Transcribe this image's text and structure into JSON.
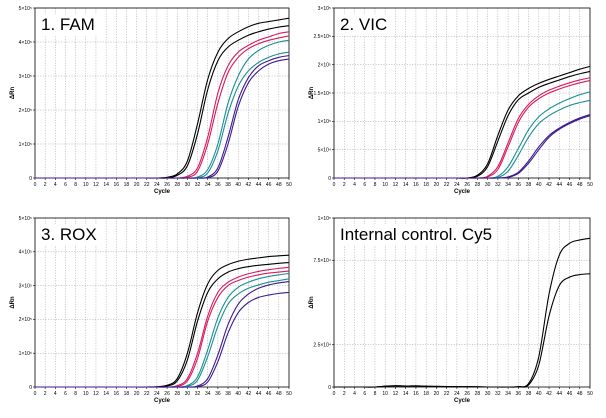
{
  "chart_data": [
    {
      "type": "line",
      "title": "1. FAM",
      "xlabel": "Cycle",
      "ylabel": "ΔRn",
      "x": [
        0,
        2,
        4,
        6,
        8,
        10,
        12,
        14,
        16,
        18,
        20,
        22,
        24,
        26,
        28,
        30,
        32,
        34,
        36,
        38,
        40,
        42,
        44,
        46,
        48,
        50
      ],
      "x_ticks": [
        "0",
        "2",
        "4",
        "6",
        "8",
        "10",
        "12",
        "14",
        "16",
        "18",
        "20",
        "22",
        "24",
        "26",
        "28",
        "30",
        "32",
        "34",
        "36",
        "38",
        "40",
        "42",
        "44",
        "46",
        "48",
        "50"
      ],
      "xlim": [
        0,
        50
      ],
      "ylim": [
        0,
        5
      ],
      "y_ticks": [
        0,
        1,
        2,
        3,
        4,
        5
      ],
      "y_tick_labels": [
        "0",
        "1×10⁵",
        "2×10⁵",
        "3×10⁵",
        "4×10⁵",
        "5×10⁵"
      ],
      "grid": true,
      "series": [
        {
          "color": "#000000",
          "values": [
            0,
            0,
            0,
            0,
            0,
            0,
            0,
            0,
            0,
            0,
            0,
            0,
            0,
            0.02,
            0.12,
            0.5,
            1.6,
            2.9,
            3.7,
            4.1,
            4.3,
            4.45,
            4.55,
            4.6,
            4.65,
            4.7
          ]
        },
        {
          "color": "#000000",
          "values": [
            0,
            0,
            0,
            0,
            0,
            0,
            0,
            0,
            0,
            0,
            0,
            0,
            0,
            0,
            0.08,
            0.36,
            1.3,
            2.6,
            3.45,
            3.85,
            4.05,
            4.2,
            4.3,
            4.38,
            4.44,
            4.48
          ]
        },
        {
          "color": "#d81b60",
          "values": [
            0,
            0,
            0,
            0,
            0,
            0,
            0,
            0,
            0,
            0,
            0,
            0,
            0,
            0,
            0,
            0.05,
            0.3,
            1.2,
            2.5,
            3.3,
            3.7,
            3.9,
            4.05,
            4.15,
            4.25,
            4.3
          ]
        },
        {
          "color": "#d81b60",
          "values": [
            0,
            0,
            0,
            0,
            0,
            0,
            0,
            0,
            0,
            0,
            0,
            0,
            0,
            0,
            0,
            0.02,
            0.2,
            1.0,
            2.2,
            3.1,
            3.55,
            3.8,
            3.95,
            4.05,
            4.12,
            4.18
          ]
        },
        {
          "color": "#1a8f94",
          "values": [
            0,
            0,
            0,
            0,
            0,
            0,
            0,
            0,
            0,
            0,
            0,
            0,
            0,
            0,
            0,
            0,
            0.03,
            0.25,
            1.0,
            2.2,
            3.0,
            3.5,
            3.75,
            3.9,
            4.0,
            4.05
          ]
        },
        {
          "color": "#1a8f94",
          "values": [
            0,
            0,
            0,
            0,
            0,
            0,
            0,
            0,
            0,
            0,
            0,
            0,
            0,
            0,
            0,
            0,
            0.01,
            0.15,
            0.8,
            1.9,
            2.7,
            3.15,
            3.4,
            3.55,
            3.65,
            3.7
          ]
        },
        {
          "color": "#3d1a8f",
          "values": [
            0,
            0,
            0,
            0,
            0,
            0,
            0,
            0,
            0,
            0,
            0,
            0,
            0,
            0,
            0,
            0,
            0,
            0.03,
            0.3,
            1.2,
            2.3,
            2.95,
            3.3,
            3.45,
            3.55,
            3.6
          ]
        },
        {
          "color": "#3d1a8f",
          "values": [
            0,
            0,
            0,
            0,
            0,
            0,
            0,
            0,
            0,
            0,
            0,
            0,
            0,
            0,
            0,
            0,
            0,
            0.01,
            0.2,
            1.0,
            2.1,
            2.8,
            3.15,
            3.35,
            3.45,
            3.5
          ]
        }
      ]
    },
    {
      "type": "line",
      "title": "2. VIC",
      "xlabel": "Cycle",
      "ylabel": "ΔRn",
      "x": [
        0,
        2,
        4,
        6,
        8,
        10,
        12,
        14,
        16,
        18,
        20,
        22,
        24,
        26,
        28,
        30,
        32,
        34,
        36,
        38,
        40,
        42,
        44,
        46,
        48,
        50
      ],
      "x_ticks": [
        "0",
        "2",
        "4",
        "6",
        "8",
        "10",
        "12",
        "14",
        "16",
        "18",
        "20",
        "22",
        "24",
        "26",
        "28",
        "30",
        "32",
        "34",
        "36",
        "38",
        "40",
        "42",
        "44",
        "46",
        "48",
        "50"
      ],
      "xlim": [
        0,
        50
      ],
      "ylim": [
        0,
        3
      ],
      "y_ticks": [
        0,
        0.5,
        1,
        1.5,
        2,
        2.5,
        3
      ],
      "y_tick_labels": [
        "0",
        "5×10⁴",
        "1×10⁵",
        "1.5×10⁵",
        "2×10⁵",
        "2.5×10⁵",
        "3×10⁵"
      ],
      "grid": true,
      "series": [
        {
          "color": "#000000",
          "values": [
            0,
            0,
            0,
            0,
            0,
            0,
            0,
            0,
            0,
            0,
            0,
            0,
            0,
            0,
            0.05,
            0.25,
            0.75,
            1.2,
            1.45,
            1.58,
            1.67,
            1.74,
            1.8,
            1.86,
            1.92,
            1.97
          ]
        },
        {
          "color": "#000000",
          "values": [
            0,
            0,
            0,
            0,
            0,
            0,
            0,
            0,
            0,
            0,
            0,
            0,
            0,
            0,
            0.03,
            0.2,
            0.65,
            1.1,
            1.38,
            1.5,
            1.6,
            1.67,
            1.73,
            1.79,
            1.84,
            1.88
          ]
        },
        {
          "color": "#d81b60",
          "values": [
            0,
            0,
            0,
            0,
            0,
            0,
            0,
            0,
            0,
            0,
            0,
            0,
            0,
            0,
            0,
            0.03,
            0.2,
            0.62,
            1.05,
            1.3,
            1.45,
            1.55,
            1.62,
            1.68,
            1.73,
            1.77
          ]
        },
        {
          "color": "#d81b60",
          "values": [
            0,
            0,
            0,
            0,
            0,
            0,
            0,
            0,
            0,
            0,
            0,
            0,
            0,
            0,
            0,
            0.02,
            0.15,
            0.55,
            0.98,
            1.25,
            1.4,
            1.5,
            1.57,
            1.63,
            1.68,
            1.72
          ]
        },
        {
          "color": "#1a8f94",
          "values": [
            0,
            0,
            0,
            0,
            0,
            0,
            0,
            0,
            0,
            0,
            0,
            0,
            0,
            0,
            0,
            0,
            0.03,
            0.2,
            0.52,
            0.85,
            1.08,
            1.22,
            1.32,
            1.4,
            1.47,
            1.52
          ]
        },
        {
          "color": "#1a8f94",
          "values": [
            0,
            0,
            0,
            0,
            0,
            0,
            0,
            0,
            0,
            0,
            0,
            0,
            0,
            0,
            0,
            0,
            0.01,
            0.12,
            0.4,
            0.72,
            0.96,
            1.1,
            1.2,
            1.28,
            1.33,
            1.37
          ]
        },
        {
          "color": "#3d1a8f",
          "values": [
            0,
            0,
            0,
            0,
            0,
            0,
            0,
            0,
            0,
            0,
            0,
            0,
            0,
            0,
            0,
            0,
            0,
            0.02,
            0.1,
            0.3,
            0.55,
            0.75,
            0.88,
            0.98,
            1.06,
            1.12
          ]
        },
        {
          "color": "#3d1a8f",
          "values": [
            0,
            0,
            0,
            0,
            0,
            0,
            0,
            0,
            0,
            0,
            0,
            0,
            0,
            0,
            0,
            0,
            0,
            0.01,
            0.08,
            0.26,
            0.5,
            0.72,
            0.86,
            0.96,
            1.04,
            1.1
          ]
        }
      ]
    },
    {
      "type": "line",
      "title": "3. ROX",
      "xlabel": "Cycle",
      "ylabel": "ΔRn",
      "x": [
        0,
        2,
        4,
        6,
        8,
        10,
        12,
        14,
        16,
        18,
        20,
        22,
        24,
        26,
        28,
        30,
        32,
        34,
        36,
        38,
        40,
        42,
        44,
        46,
        48,
        50
      ],
      "x_ticks": [
        "0",
        "2",
        "4",
        "6",
        "8",
        "10",
        "12",
        "14",
        "16",
        "18",
        "20",
        "22",
        "24",
        "26",
        "28",
        "30",
        "32",
        "34",
        "36",
        "38",
        "40",
        "42",
        "44",
        "46",
        "48",
        "50"
      ],
      "xlim": [
        0,
        50
      ],
      "ylim": [
        0,
        5
      ],
      "y_ticks": [
        0,
        1,
        2,
        3,
        4,
        5
      ],
      "y_tick_labels": [
        "0",
        "1×10⁵",
        "2×10⁵",
        "3×10⁵",
        "4×10⁵",
        "5×10⁵"
      ],
      "grid": true,
      "series": [
        {
          "color": "#000000",
          "values": [
            0,
            0,
            0,
            0,
            0,
            0,
            0,
            0,
            0,
            0,
            0,
            0,
            0.01,
            0.05,
            0.25,
            1.0,
            2.2,
            3.05,
            3.45,
            3.62,
            3.72,
            3.78,
            3.82,
            3.86,
            3.88,
            3.9
          ]
        },
        {
          "color": "#000000",
          "values": [
            0,
            0,
            0,
            0,
            0,
            0,
            0,
            0,
            0,
            0,
            0,
            0,
            0,
            0.03,
            0.18,
            0.8,
            1.95,
            2.8,
            3.2,
            3.4,
            3.5,
            3.56,
            3.6,
            3.63,
            3.66,
            3.68
          ]
        },
        {
          "color": "#d81b60",
          "values": [
            0,
            0,
            0,
            0,
            0,
            0,
            0,
            0,
            0,
            0,
            0,
            0,
            0,
            0,
            0.04,
            0.25,
            1.0,
            2.1,
            2.8,
            3.1,
            3.25,
            3.35,
            3.42,
            3.47,
            3.51,
            3.54
          ]
        },
        {
          "color": "#d81b60",
          "values": [
            0,
            0,
            0,
            0,
            0,
            0,
            0,
            0,
            0,
            0,
            0,
            0,
            0,
            0,
            0.02,
            0.18,
            0.85,
            1.95,
            2.65,
            3.0,
            3.15,
            3.25,
            3.32,
            3.37,
            3.4,
            3.43
          ]
        },
        {
          "color": "#1a8f94",
          "values": [
            0,
            0,
            0,
            0,
            0,
            0,
            0,
            0,
            0,
            0,
            0,
            0,
            0,
            0,
            0,
            0.04,
            0.3,
            1.1,
            2.05,
            2.65,
            2.95,
            3.1,
            3.2,
            3.27,
            3.32,
            3.36
          ]
        },
        {
          "color": "#1a8f94",
          "values": [
            0,
            0,
            0,
            0,
            0,
            0,
            0,
            0,
            0,
            0,
            0,
            0,
            0,
            0,
            0,
            0.02,
            0.2,
            0.9,
            1.8,
            2.45,
            2.75,
            2.92,
            3.02,
            3.1,
            3.15,
            3.2
          ]
        },
        {
          "color": "#3d1a8f",
          "values": [
            0,
            0,
            0,
            0,
            0,
            0,
            0,
            0,
            0,
            0,
            0,
            0,
            0,
            0,
            0,
            0,
            0.03,
            0.25,
            0.95,
            1.85,
            2.45,
            2.75,
            2.92,
            3.02,
            3.08,
            3.12
          ]
        },
        {
          "color": "#3d1a8f",
          "values": [
            0,
            0,
            0,
            0,
            0,
            0,
            0,
            0,
            0,
            0,
            0,
            0,
            0,
            0,
            0,
            0,
            0.01,
            0.15,
            0.75,
            1.6,
            2.2,
            2.5,
            2.65,
            2.72,
            2.77,
            2.8
          ]
        }
      ]
    },
    {
      "type": "line",
      "title": "Internal control. Cy5",
      "xlabel": "Cycle",
      "ylabel": "ΔRn",
      "x": [
        0,
        2,
        4,
        6,
        8,
        10,
        12,
        14,
        16,
        18,
        20,
        22,
        24,
        26,
        28,
        30,
        32,
        34,
        36,
        38,
        40,
        42,
        44,
        46,
        48,
        50
      ],
      "x_ticks": [
        "0",
        "2",
        "4",
        "6",
        "8",
        "10",
        "12",
        "14",
        "16",
        "18",
        "20",
        "22",
        "24",
        "26",
        "28",
        "30",
        "32",
        "34",
        "36",
        "38",
        "40",
        "42",
        "44",
        "46",
        "48",
        "50"
      ],
      "xlim": [
        0,
        50
      ],
      "ylim": [
        0,
        10
      ],
      "y_ticks": [
        0,
        2.5,
        7.5,
        10
      ],
      "y_tick_labels": [
        "0",
        "2.5×10⁴",
        "7.5×10⁴",
        "1×10⁵"
      ],
      "grid": true,
      "series": [
        {
          "color": "#000000",
          "values": [
            0,
            0,
            0,
            0,
            0,
            0.05,
            0.08,
            0.06,
            0.07,
            0.05,
            0.04,
            0.03,
            0.02,
            0.02,
            0.01,
            0,
            0,
            0,
            0.02,
            0.2,
            1.8,
            5.5,
            7.8,
            8.5,
            8.7,
            8.8
          ]
        },
        {
          "color": "#000000",
          "values": [
            0,
            0,
            0,
            0,
            0,
            0.04,
            0.06,
            0.05,
            0.05,
            0.04,
            0.03,
            0.02,
            0.02,
            0.01,
            0.01,
            0,
            0,
            0,
            0.01,
            0.12,
            1.3,
            4.2,
            6.0,
            6.5,
            6.65,
            6.7
          ]
        }
      ]
    }
  ]
}
